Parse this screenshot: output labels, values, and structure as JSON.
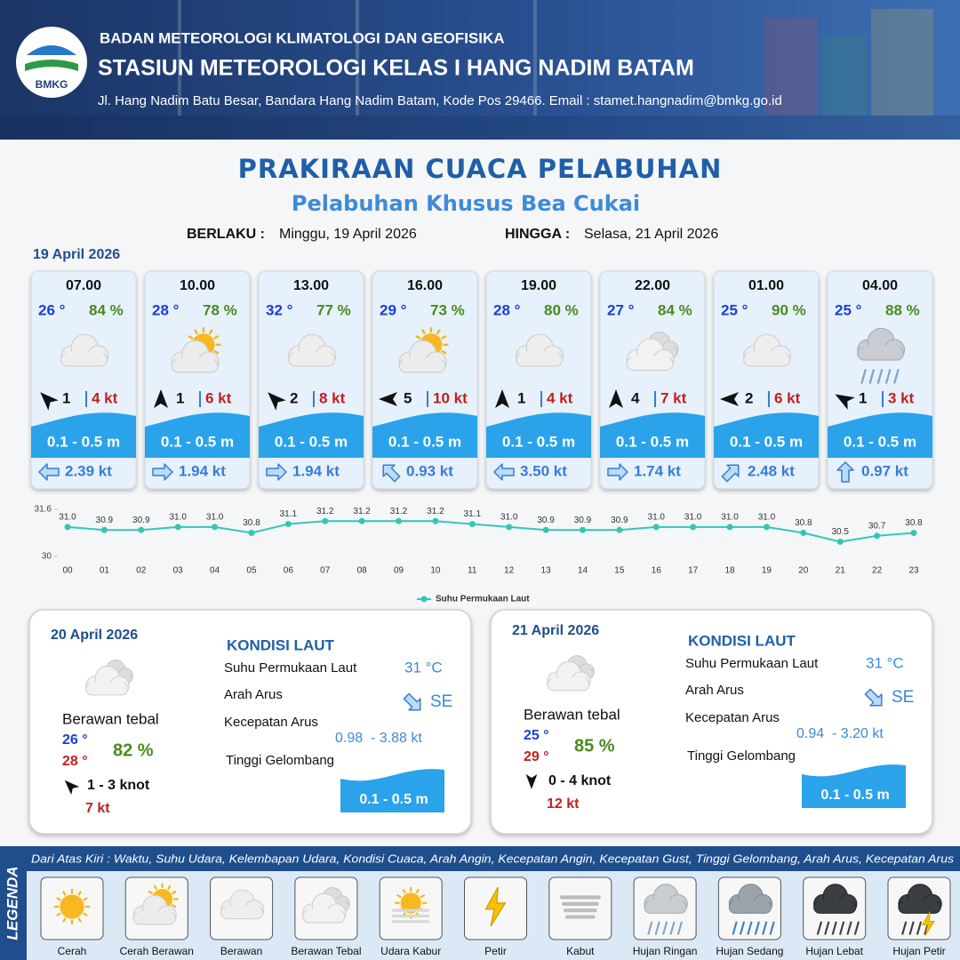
{
  "header": {
    "logo": "BMKG",
    "agency": "BADAN METEOROLOGI KLIMATOLOGI DAN GEOFISIKA",
    "station": "STASIUN METEOROLOGI KELAS I HANG NADIM BATAM",
    "address": "Jl. Hang Nadim Batu Besar, Bandara Hang Nadim Batam, Kode Pos 29466. Email : stamet.hangnadim@bmkg.go.id"
  },
  "title": "PRAKIRAAN CUACA PELABUHAN",
  "subtitle": "Pelabuhan Khusus Bea Cukai",
  "validity": {
    "from_label": "BERLAKU :",
    "from": "Minggu, 19 April 2026",
    "to_label": "HINGGA :",
    "to": "Selasa, 21 April 2026"
  },
  "today": {
    "date": "19 April 2026",
    "forecasts": [
      {
        "time": "07.00",
        "temp": "26 °",
        "humidity": "84 %",
        "wind": "1",
        "gust": "4 kt",
        "wave": "0.1 - 0.5 m",
        "current": "2.39 kt"
      },
      {
        "time": "10.00",
        "temp": "28 °",
        "humidity": "78 %",
        "wind": "1",
        "gust": "6 kt",
        "wave": "0.1 - 0.5 m",
        "current": "1.94 kt"
      },
      {
        "time": "13.00",
        "temp": "32 °",
        "humidity": "77 %",
        "wind": "2",
        "gust": "8 kt",
        "wave": "0.1 - 0.5 m",
        "current": "1.94 kt"
      },
      {
        "time": "16.00",
        "temp": "29 °",
        "humidity": "73 %",
        "wind": "5",
        "gust": "10 kt",
        "wave": "0.1 - 0.5 m",
        "current": "0.93 kt"
      },
      {
        "time": "19.00",
        "temp": "28 °",
        "humidity": "80 %",
        "wind": "1",
        "gust": "4 kt",
        "wave": "0.1 - 0.5 m",
        "current": "3.50 kt"
      },
      {
        "time": "22.00",
        "temp": "27 °",
        "humidity": "84 %",
        "wind": "4",
        "gust": "7 kt",
        "wave": "0.1 - 0.5 m",
        "current": "1.74 kt"
      },
      {
        "time": "01.00",
        "temp": "25 °",
        "humidity": "90 %",
        "wind": "2",
        "gust": "6 kt",
        "wave": "0.1 - 0.5 m",
        "current": "2.48 kt"
      },
      {
        "time": "04.00",
        "temp": "25 °",
        "humidity": "88 %",
        "wind": "1",
        "gust": "3 kt",
        "wave": "0.1 - 0.5 m",
        "current": "0.97 kt"
      }
    ]
  },
  "days": [
    {
      "date": "20 April 2026",
      "heading": "KONDISI LAUT",
      "sst_label": "Suhu Permukaan Laut",
      "sst": "31 °C",
      "dir_label": "Arah Arus",
      "dir": "SE",
      "speed_label": "Kecepatan Arus",
      "speed": "0.98  - 3.88 kt",
      "wave_label": "Tinggi Gelombang",
      "wave": "0.1 - 0.5 m",
      "condition": "Berawan tebal",
      "tmin": "26 °",
      "tmax": "28 °",
      "humidity": "82 %",
      "wind": "1  - 3 knot",
      "gust": "7 kt"
    },
    {
      "date": "21 April 2026",
      "heading": "KONDISI LAUT",
      "sst_label": "Suhu Permukaan Laut",
      "sst": "31 °C",
      "dir_label": "Arah Arus",
      "dir": "SE",
      "speed_label": "Kecepatan Arus",
      "speed": "0.94  - 3.20 kt",
      "wave_label": "Tinggi Gelombang",
      "wave": "0.1 - 0.5 m",
      "condition": "Berawan tebal",
      "tmin": "25 °",
      "tmax": "29 °",
      "humidity": "85 %",
      "wind": "0  - 4 knot",
      "gust": "12 kt"
    }
  ],
  "chart_data": {
    "type": "line",
    "categories": [
      "00",
      "01",
      "02",
      "03",
      "04",
      "05",
      "06",
      "07",
      "08",
      "09",
      "10",
      "11",
      "12",
      "13",
      "14",
      "15",
      "16",
      "17",
      "18",
      "19",
      "20",
      "21",
      "22",
      "23"
    ],
    "series": [
      {
        "name": "Suhu Permukaan Laut",
        "color": "#33c6b8",
        "values": [
          31.0,
          30.9,
          30.9,
          31.0,
          31.0,
          30.8,
          31.1,
          31.2,
          31.2,
          31.2,
          31.2,
          31.1,
          31.0,
          30.9,
          30.9,
          30.9,
          31.0,
          31.0,
          31.0,
          31.0,
          30.8,
          30.5,
          30.7,
          30.8
        ],
        "value_labels": [
          "31.0",
          "30.9",
          "30.9",
          "31.0",
          "31.0",
          "30.8",
          "31.1",
          "31.2",
          "31.2",
          "31.2",
          "31.2",
          "31.1",
          "31.0",
          "30.9",
          "30.9",
          "30.9",
          "31.0",
          "31.0",
          "31.0",
          "31.0",
          "30.8",
          "30.5",
          "30.7",
          "30.8"
        ]
      }
    ],
    "ylim": [
      30,
      31.6
    ],
    "yticks": [
      30,
      31.6
    ]
  },
  "legend": {
    "title": "LEGENDA",
    "note": "Dari Atas Kiri : Waktu, Suhu Udara, Kelembapan Udara, Kondisi Cuaca, Arah Angin, Kecepatan Angin, Kecepatan Gust, Tinggi Gelombang, Arah Arus, Kecepatan Arus",
    "items": [
      "Cerah",
      "Cerah Berawan",
      "Berawan",
      "Berawan Tebal",
      "Udara Kabur",
      "Petir",
      "Kabut",
      "Hujan Ringan",
      "Hujan Sedang",
      "Hujan Lebat",
      "Hujan Petir"
    ]
  }
}
